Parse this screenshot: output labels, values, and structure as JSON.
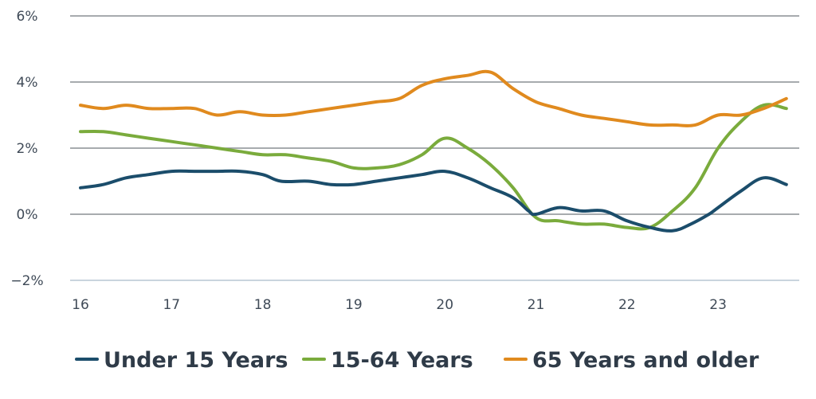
{
  "chart_data": {
    "type": "line",
    "title": "",
    "xlabel": "",
    "ylabel": "",
    "xlim": [
      16,
      23.85
    ],
    "ylim": [
      -2,
      6
    ],
    "y_ticks": [
      {
        "value": -2,
        "label": "−2%"
      },
      {
        "value": 0,
        "label": "0%"
      },
      {
        "value": 2,
        "label": "2%"
      },
      {
        "value": 4,
        "label": "4%"
      },
      {
        "value": 6,
        "label": "6%"
      }
    ],
    "x_ticks": [
      {
        "value": 16,
        "label": "16"
      },
      {
        "value": 17,
        "label": "17"
      },
      {
        "value": 18,
        "label": "18"
      },
      {
        "value": 19,
        "label": "19"
      },
      {
        "value": 20,
        "label": "20"
      },
      {
        "value": 21,
        "label": "21"
      },
      {
        "value": 22,
        "label": "22"
      },
      {
        "value": 23,
        "label": "23"
      }
    ],
    "grid": true,
    "legend_position": "bottom",
    "series": [
      {
        "name": "Under 15 Years",
        "color": "#1b4d6b",
        "x": [
          16.0,
          16.25,
          16.5,
          16.75,
          17.0,
          17.25,
          17.5,
          17.75,
          18.0,
          18.2,
          18.5,
          18.75,
          19.0,
          19.25,
          19.5,
          19.75,
          20.0,
          20.25,
          20.5,
          20.75,
          20.92,
          21.0,
          21.25,
          21.5,
          21.75,
          22.0,
          22.25,
          22.5,
          22.7,
          22.9,
          23.0,
          23.25,
          23.5,
          23.75
        ],
        "y": [
          0.8,
          0.9,
          1.1,
          1.2,
          1.3,
          1.3,
          1.3,
          1.3,
          1.2,
          1.0,
          1.0,
          0.9,
          0.9,
          1.0,
          1.1,
          1.2,
          1.3,
          1.1,
          0.8,
          0.5,
          0.1,
          0.0,
          0.2,
          0.1,
          0.1,
          -0.2,
          -0.4,
          -0.5,
          -0.3,
          0.0,
          0.2,
          0.7,
          1.1,
          0.9
        ]
      },
      {
        "name": "15-64 Years",
        "color": "#7aab3c",
        "x": [
          16.0,
          16.25,
          16.5,
          16.75,
          17.0,
          17.25,
          17.5,
          17.75,
          18.0,
          18.25,
          18.5,
          18.75,
          19.0,
          19.25,
          19.5,
          19.75,
          20.0,
          20.25,
          20.5,
          20.75,
          21.0,
          21.25,
          21.5,
          21.75,
          22.0,
          22.25,
          22.5,
          22.75,
          23.0,
          23.25,
          23.5,
          23.75
        ],
        "y": [
          2.5,
          2.5,
          2.4,
          2.3,
          2.2,
          2.1,
          2.0,
          1.9,
          1.8,
          1.8,
          1.7,
          1.6,
          1.4,
          1.4,
          1.5,
          1.8,
          2.3,
          2.0,
          1.5,
          0.8,
          -0.1,
          -0.2,
          -0.3,
          -0.3,
          -0.4,
          -0.4,
          0.1,
          0.8,
          2.0,
          2.8,
          3.3,
          3.2
        ]
      },
      {
        "name": "65 Years and older",
        "color": "#e08a1e",
        "x": [
          16.0,
          16.25,
          16.5,
          16.75,
          17.0,
          17.25,
          17.5,
          17.75,
          18.0,
          18.25,
          18.5,
          18.75,
          19.0,
          19.25,
          19.5,
          19.75,
          20.0,
          20.25,
          20.5,
          20.75,
          21.0,
          21.25,
          21.5,
          21.75,
          22.0,
          22.25,
          22.5,
          22.75,
          23.0,
          23.25,
          23.5,
          23.75
        ],
        "y": [
          3.3,
          3.2,
          3.3,
          3.2,
          3.2,
          3.2,
          3.0,
          3.1,
          3.0,
          3.0,
          3.1,
          3.2,
          3.3,
          3.4,
          3.5,
          3.9,
          4.1,
          4.2,
          4.3,
          3.8,
          3.4,
          3.2,
          3.0,
          2.9,
          2.8,
          2.7,
          2.7,
          2.7,
          3.0,
          3.0,
          3.2,
          3.5
        ]
      }
    ]
  }
}
